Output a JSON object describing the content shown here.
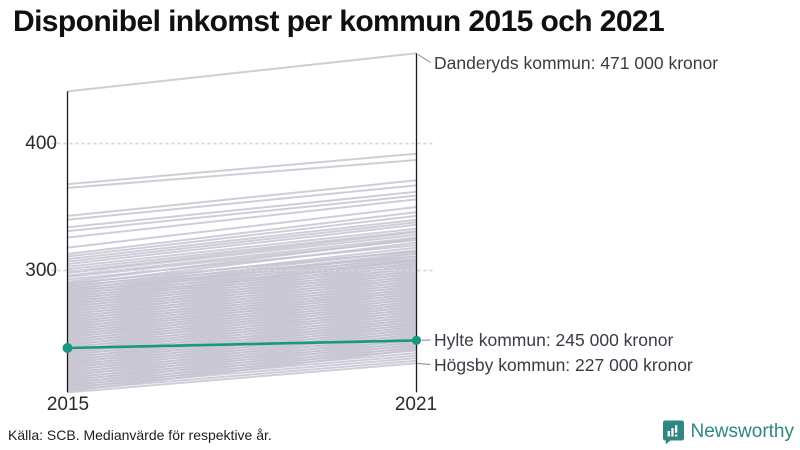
{
  "title": "Disponibel inkomst per kommun 2015 och 2021",
  "source": "Källa: SCB. Medianvärde för respektive år.",
  "branding": {
    "name": "Newsworthy",
    "color": "#2F8780"
  },
  "colors": {
    "highlight": "#18987E",
    "muted_line": "#C4C1D0",
    "axis": "#1A1A1A",
    "gridline": "#D6D6DA",
    "annotation_text": "#3B3B48",
    "leader_line": "#9A99A6"
  },
  "chart_data": {
    "type": "line",
    "subtype": "slope-chart",
    "x_labels": [
      "2015",
      "2021"
    ],
    "y_ticks": [
      {
        "label": "400",
        "value": 400
      },
      {
        "label": "300",
        "value": 300
      }
    ],
    "ylim": [
      204,
      471
    ],
    "grid": "dotted-horizontal",
    "legend_position": "none",
    "callouts": [
      {
        "id": "danderyd",
        "label": "Danderyds kommun: 471 000 kronor",
        "values": [
          441,
          471
        ],
        "highlighted": false
      },
      {
        "id": "hylte",
        "label": "Hylte kommun: 245 000 kronor",
        "values": [
          239,
          245
        ],
        "highlighted": true
      },
      {
        "id": "hogsby",
        "label": "Högsby kommun: 227 000 kronor",
        "values": [
          204,
          227
        ],
        "highlighted": false
      }
    ],
    "background_lines": [
      [
        368,
        392
      ],
      [
        365,
        387
      ],
      [
        343,
        371
      ],
      [
        340,
        367
      ],
      [
        334,
        362
      ],
      [
        331,
        359
      ],
      [
        326,
        356
      ],
      [
        318,
        350
      ],
      [
        313,
        346
      ],
      [
        311,
        343
      ],
      [
        309,
        340
      ],
      [
        307,
        338
      ],
      [
        305,
        336
      ],
      [
        303,
        333
      ],
      [
        301,
        331
      ],
      [
        299,
        330
      ],
      [
        298,
        328
      ],
      [
        296,
        326
      ],
      [
        295,
        324
      ],
      [
        293,
        320
      ],
      [
        291,
        325
      ],
      [
        290,
        315
      ],
      [
        289,
        322
      ],
      [
        288,
        311
      ],
      [
        287,
        318
      ],
      [
        286,
        309
      ],
      [
        285,
        316
      ],
      [
        284,
        307
      ],
      [
        283,
        314
      ],
      [
        282,
        305
      ],
      [
        281,
        313
      ],
      [
        280,
        303
      ],
      [
        279,
        311
      ],
      [
        278,
        301
      ],
      [
        277,
        309
      ],
      [
        276,
        299
      ],
      [
        275,
        308
      ],
      [
        274,
        297
      ],
      [
        273,
        306
      ],
      [
        272,
        295
      ],
      [
        271,
        304
      ],
      [
        270,
        293
      ],
      [
        269,
        302
      ],
      [
        268,
        291
      ],
      [
        267,
        300
      ],
      [
        266,
        289
      ],
      [
        265,
        298
      ],
      [
        264,
        287
      ],
      [
        263,
        296
      ],
      [
        262,
        285
      ],
      [
        261,
        294
      ],
      [
        260,
        283
      ],
      [
        259,
        292
      ],
      [
        258,
        281
      ],
      [
        257,
        290
      ],
      [
        256,
        279
      ],
      [
        255,
        288
      ],
      [
        254,
        277
      ],
      [
        253,
        286
      ],
      [
        252,
        275
      ],
      [
        251,
        284
      ],
      [
        250,
        273
      ],
      [
        249,
        282
      ],
      [
        248,
        271
      ],
      [
        247,
        280
      ],
      [
        246,
        269
      ],
      [
        245,
        278
      ],
      [
        244,
        267
      ],
      [
        243,
        276
      ],
      [
        242,
        265
      ],
      [
        241,
        274
      ],
      [
        240,
        263
      ],
      [
        239,
        272
      ],
      [
        238,
        261
      ],
      [
        237,
        270
      ],
      [
        236,
        259
      ],
      [
        235,
        268
      ],
      [
        234,
        257
      ],
      [
        233,
        266
      ],
      [
        232,
        255
      ],
      [
        231,
        264
      ],
      [
        230,
        253
      ],
      [
        229,
        262
      ],
      [
        228,
        251
      ],
      [
        227,
        260
      ],
      [
        226,
        249
      ],
      [
        225,
        258
      ],
      [
        224,
        247
      ],
      [
        223,
        256
      ],
      [
        222,
        245
      ],
      [
        221,
        254
      ],
      [
        220,
        243
      ],
      [
        219,
        252
      ],
      [
        218,
        241
      ],
      [
        217,
        250
      ],
      [
        216,
        239
      ],
      [
        215,
        248
      ],
      [
        214,
        237
      ],
      [
        213,
        246
      ],
      [
        212,
        235
      ],
      [
        211,
        244
      ],
      [
        210,
        233
      ],
      [
        209,
        242
      ],
      [
        208,
        231
      ],
      [
        207,
        240
      ],
      [
        206,
        229
      ],
      [
        205,
        238
      ]
    ]
  }
}
